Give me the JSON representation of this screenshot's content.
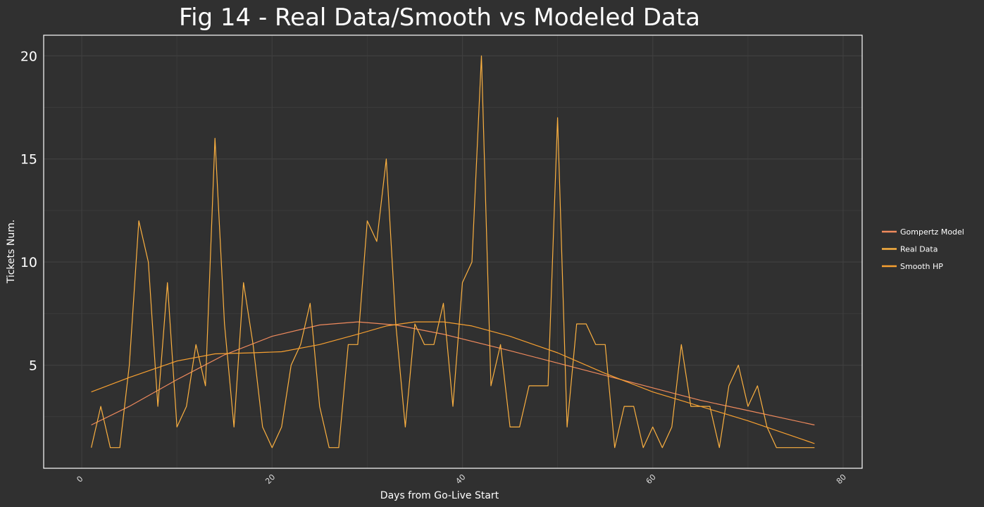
{
  "chart_data": {
    "type": "line",
    "title": "Fig 14 - Real Data/Smooth vs Modeled Data",
    "xlabel": "Days from Go-Live Start",
    "ylabel": "Tickets Num.",
    "xlim": [
      -4,
      82
    ],
    "ylim": [
      0,
      21
    ],
    "x_ticks": [
      0,
      20,
      40,
      60,
      80
    ],
    "y_ticks": [
      5,
      10,
      15,
      20
    ],
    "grid": true,
    "legend_position": "right",
    "series": [
      {
        "name": "Gompertz Model",
        "color": "#f08a5d",
        "x": [
          1,
          5,
          10,
          15,
          20,
          25,
          29,
          33,
          38,
          45,
          50,
          55,
          60,
          65,
          70,
          77
        ],
        "y": [
          2.1,
          3.0,
          4.3,
          5.5,
          6.4,
          6.95,
          7.1,
          6.95,
          6.5,
          5.7,
          5.1,
          4.5,
          3.9,
          3.3,
          2.8,
          2.1
        ]
      },
      {
        "name": "Real Data",
        "color": "#fbb040",
        "x": [
          1,
          2,
          3,
          4,
          5,
          6,
          7,
          8,
          9,
          10,
          11,
          12,
          13,
          14,
          15,
          16,
          17,
          18,
          19,
          20,
          21,
          22,
          23,
          24,
          25,
          26,
          27,
          28,
          29,
          30,
          31,
          32,
          33,
          34,
          35,
          36,
          37,
          38,
          39,
          40,
          41,
          42,
          43,
          44,
          45,
          46,
          47,
          48,
          49,
          50,
          51,
          52,
          53,
          54,
          55,
          56,
          57,
          58,
          59,
          60,
          61,
          62,
          63,
          64,
          65,
          66,
          67,
          68,
          69,
          70,
          71,
          72,
          73,
          74,
          75,
          76,
          77
        ],
        "y": [
          1,
          3,
          1,
          1,
          5,
          12,
          10,
          3,
          9,
          2,
          3,
          6,
          4,
          16,
          7,
          2,
          9,
          6,
          2,
          1,
          2,
          5,
          6,
          8,
          3,
          1,
          1,
          6,
          6,
          12,
          11,
          15,
          7,
          2,
          7,
          6,
          6,
          8,
          3,
          9,
          10,
          20,
          4,
          6,
          2,
          2,
          4,
          4,
          4,
          17,
          2,
          7,
          7,
          6,
          6,
          1,
          3,
          3,
          1,
          2,
          1,
          2,
          6,
          3,
          3,
          3,
          1,
          4,
          5,
          3,
          4,
          2,
          1,
          1,
          1,
          1,
          1
        ]
      },
      {
        "name": "Smooth HP",
        "color": "#f7a030",
        "x": [
          1,
          5,
          10,
          14,
          18,
          21,
          25,
          29,
          32,
          35,
          38,
          41,
          45,
          50,
          55,
          60,
          65,
          70,
          77
        ],
        "y": [
          3.7,
          4.4,
          5.2,
          5.55,
          5.6,
          5.65,
          6.0,
          6.5,
          6.9,
          7.1,
          7.1,
          6.9,
          6.4,
          5.6,
          4.6,
          3.7,
          3.0,
          2.3,
          1.2
        ]
      }
    ]
  }
}
